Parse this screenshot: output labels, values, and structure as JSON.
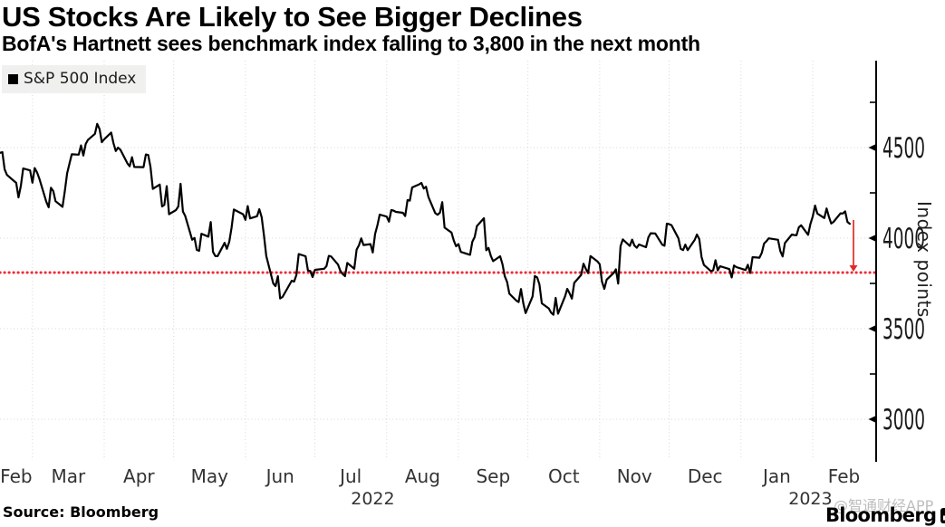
{
  "chart_data": {
    "type": "line",
    "title": "US Stocks Are Likely to See Bigger Declines",
    "subtitle": "BofA's Hartnett sees benchmark index falling to 3,800 in the next month",
    "legend_position": "top-left",
    "grid": true,
    "grid_color": "#d6d6d6",
    "total_days": 378,
    "series": [
      {
        "name": "S&P 500 Index",
        "color": "#000000",
        "points": [
          [
            0,
            4471
          ],
          [
            1,
            4475
          ],
          [
            2,
            4380
          ],
          [
            3,
            4349
          ],
          [
            7,
            4305
          ],
          [
            8,
            4225
          ],
          [
            9,
            4288
          ],
          [
            10,
            4385
          ],
          [
            13,
            4374
          ],
          [
            14,
            4306
          ],
          [
            15,
            4387
          ],
          [
            16,
            4363
          ],
          [
            17,
            4329
          ],
          [
            20,
            4201
          ],
          [
            21,
            4170
          ],
          [
            22,
            4278
          ],
          [
            23,
            4260
          ],
          [
            24,
            4204
          ],
          [
            27,
            4173
          ],
          [
            28,
            4262
          ],
          [
            29,
            4358
          ],
          [
            30,
            4412
          ],
          [
            31,
            4463
          ],
          [
            34,
            4461
          ],
          [
            35,
            4512
          ],
          [
            36,
            4456
          ],
          [
            37,
            4520
          ],
          [
            38,
            4543
          ],
          [
            41,
            4576
          ],
          [
            42,
            4631
          ],
          [
            43,
            4602
          ],
          [
            44,
            4530
          ],
          [
            45,
            4546
          ],
          [
            48,
            4583
          ],
          [
            49,
            4525
          ],
          [
            50,
            4481
          ],
          [
            51,
            4500
          ],
          [
            52,
            4488
          ],
          [
            55,
            4413
          ],
          [
            56,
            4397
          ],
          [
            57,
            4447
          ],
          [
            58,
            4393
          ],
          [
            62,
            4392
          ],
          [
            63,
            4462
          ],
          [
            64,
            4459
          ],
          [
            65,
            4393
          ],
          [
            66,
            4272
          ],
          [
            69,
            4296
          ],
          [
            70,
            4175
          ],
          [
            71,
            4184
          ],
          [
            72,
            4287
          ],
          [
            73,
            4132
          ],
          [
            76,
            4155
          ],
          [
            77,
            4175
          ],
          [
            78,
            4300
          ],
          [
            79,
            4147
          ],
          [
            80,
            4123
          ],
          [
            83,
            3991
          ],
          [
            84,
            4001
          ],
          [
            85,
            3935
          ],
          [
            86,
            3930
          ],
          [
            87,
            4024
          ],
          [
            90,
            4008
          ],
          [
            91,
            4089
          ],
          [
            92,
            3924
          ],
          [
            93,
            3901
          ],
          [
            94,
            3901
          ],
          [
            97,
            3974
          ],
          [
            98,
            3941
          ],
          [
            99,
            3979
          ],
          [
            100,
            4058
          ],
          [
            101,
            4158
          ],
          [
            105,
            4132
          ],
          [
            106,
            4101
          ],
          [
            107,
            4177
          ],
          [
            108,
            4109
          ],
          [
            111,
            4121
          ],
          [
            112,
            4160
          ],
          [
            113,
            4116
          ],
          [
            114,
            4017
          ],
          [
            115,
            3901
          ],
          [
            118,
            3750
          ],
          [
            119,
            3735
          ],
          [
            120,
            3790
          ],
          [
            121,
            3667
          ],
          [
            122,
            3675
          ],
          [
            126,
            3765
          ],
          [
            127,
            3760
          ],
          [
            128,
            3796
          ],
          [
            129,
            3912
          ],
          [
            132,
            3900
          ],
          [
            133,
            3821
          ],
          [
            134,
            3819
          ],
          [
            135,
            3785
          ],
          [
            136,
            3825
          ],
          [
            140,
            3831
          ],
          [
            141,
            3845
          ],
          [
            142,
            3902
          ],
          [
            143,
            3899
          ],
          [
            146,
            3854
          ],
          [
            147,
            3819
          ],
          [
            148,
            3802
          ],
          [
            149,
            3790
          ],
          [
            150,
            3863
          ],
          [
            153,
            3831
          ],
          [
            154,
            3937
          ],
          [
            155,
            3960
          ],
          [
            156,
            3999
          ],
          [
            157,
            3962
          ],
          [
            160,
            3967
          ],
          [
            161,
            3921
          ],
          [
            162,
            4023
          ],
          [
            163,
            4072
          ],
          [
            164,
            4130
          ],
          [
            167,
            4119
          ],
          [
            168,
            4091
          ],
          [
            169,
            4155
          ],
          [
            170,
            4152
          ],
          [
            171,
            4145
          ],
          [
            174,
            4140
          ],
          [
            175,
            4122
          ],
          [
            176,
            4210
          ],
          [
            177,
            4207
          ],
          [
            178,
            4280
          ],
          [
            181,
            4297
          ],
          [
            182,
            4305
          ],
          [
            183,
            4274
          ],
          [
            184,
            4284
          ],
          [
            185,
            4228
          ],
          [
            188,
            4138
          ],
          [
            189,
            4129
          ],
          [
            190,
            4141
          ],
          [
            191,
            4199
          ],
          [
            192,
            4058
          ],
          [
            195,
            4031
          ],
          [
            196,
            3986
          ],
          [
            197,
            3955
          ],
          [
            198,
            3967
          ],
          [
            199,
            3924
          ],
          [
            203,
            3908
          ],
          [
            204,
            3980
          ],
          [
            205,
            4006
          ],
          [
            206,
            4067
          ],
          [
            209,
            4110
          ],
          [
            210,
            3933
          ],
          [
            211,
            3946
          ],
          [
            212,
            3901
          ],
          [
            213,
            3873
          ],
          [
            216,
            3900
          ],
          [
            217,
            3856
          ],
          [
            218,
            3790
          ],
          [
            219,
            3758
          ],
          [
            220,
            3693
          ],
          [
            223,
            3655
          ],
          [
            224,
            3647
          ],
          [
            225,
            3719
          ],
          [
            226,
            3640
          ],
          [
            227,
            3586
          ],
          [
            230,
            3678
          ],
          [
            231,
            3791
          ],
          [
            232,
            3783
          ],
          [
            233,
            3744
          ],
          [
            234,
            3640
          ],
          [
            237,
            3612
          ],
          [
            238,
            3589
          ],
          [
            239,
            3577
          ],
          [
            240,
            3670
          ],
          [
            241,
            3583
          ],
          [
            244,
            3678
          ],
          [
            245,
            3720
          ],
          [
            246,
            3695
          ],
          [
            247,
            3666
          ],
          [
            248,
            3753
          ],
          [
            251,
            3797
          ],
          [
            252,
            3859
          ],
          [
            253,
            3830
          ],
          [
            254,
            3807
          ],
          [
            255,
            3901
          ],
          [
            258,
            3872
          ],
          [
            259,
            3856
          ],
          [
            260,
            3760
          ],
          [
            261,
            3720
          ],
          [
            262,
            3771
          ],
          [
            265,
            3807
          ],
          [
            266,
            3828
          ],
          [
            267,
            3749
          ],
          [
            268,
            3956
          ],
          [
            269,
            3993
          ],
          [
            272,
            3957
          ],
          [
            273,
            3992
          ],
          [
            274,
            3959
          ],
          [
            275,
            3947
          ],
          [
            276,
            3965
          ],
          [
            279,
            3950
          ],
          [
            280,
            4004
          ],
          [
            281,
            4027
          ],
          [
            283,
            4026
          ],
          [
            286,
            3964
          ],
          [
            287,
            3958
          ],
          [
            288,
            4080
          ],
          [
            289,
            4077
          ],
          [
            290,
            4072
          ],
          [
            293,
            3999
          ],
          [
            294,
            3941
          ],
          [
            295,
            3934
          ],
          [
            296,
            3964
          ],
          [
            297,
            3934
          ],
          [
            300,
            3990
          ],
          [
            301,
            4020
          ],
          [
            302,
            3995
          ],
          [
            303,
            3896
          ],
          [
            304,
            3852
          ],
          [
            307,
            3818
          ],
          [
            308,
            3822
          ],
          [
            309,
            3878
          ],
          [
            310,
            3822
          ],
          [
            311,
            3845
          ],
          [
            315,
            3829
          ],
          [
            316,
            3783
          ],
          [
            317,
            3849
          ],
          [
            318,
            3840
          ],
          [
            322,
            3824
          ],
          [
            323,
            3853
          ],
          [
            324,
            3808
          ],
          [
            325,
            3895
          ],
          [
            328,
            3892
          ],
          [
            329,
            3919
          ],
          [
            330,
            3970
          ],
          [
            331,
            3983
          ],
          [
            332,
            3999
          ],
          [
            336,
            3991
          ],
          [
            337,
            3929
          ],
          [
            338,
            3899
          ],
          [
            339,
            3973
          ],
          [
            342,
            4020
          ],
          [
            343,
            4017
          ],
          [
            344,
            4016
          ],
          [
            345,
            4060
          ],
          [
            346,
            4071
          ],
          [
            349,
            4018
          ],
          [
            350,
            4077
          ],
          [
            351,
            4119
          ],
          [
            352,
            4180
          ],
          [
            353,
            4136
          ],
          [
            356,
            4111
          ],
          [
            357,
            4164
          ],
          [
            358,
            4118
          ],
          [
            359,
            4081
          ],
          [
            360,
            4090
          ],
          [
            363,
            4137
          ],
          [
            364,
            4136
          ],
          [
            365,
            4148
          ],
          [
            366,
            4090
          ],
          [
            367,
            4079
          ]
        ]
      }
    ],
    "x_axis": {
      "months": [
        {
          "label": "Feb",
          "mid_day": 7
        },
        {
          "label": "Mar",
          "mid_day": 29.5
        },
        {
          "label": "Apr",
          "mid_day": 60
        },
        {
          "label": "May",
          "mid_day": 90.5
        },
        {
          "label": "Jun",
          "mid_day": 121
        },
        {
          "label": "Jul",
          "mid_day": 151.5
        },
        {
          "label": "Aug",
          "mid_day": 182.5
        },
        {
          "label": "Sep",
          "mid_day": 213
        },
        {
          "label": "Oct",
          "mid_day": 243.5
        },
        {
          "label": "Nov",
          "mid_day": 274
        },
        {
          "label": "Dec",
          "mid_day": 304.5
        },
        {
          "label": "Jan",
          "mid_day": 335.5
        },
        {
          "label": "Feb",
          "mid_day": 364.5
        }
      ],
      "month_tick_days": [
        14,
        45,
        75,
        106,
        136,
        167,
        198,
        228,
        259,
        289,
        320,
        351
      ],
      "years": [
        {
          "label": "2022",
          "mid_day": 161
        },
        {
          "label": "2023",
          "mid_day": 350
        }
      ]
    },
    "y_axis": {
      "label": "Index points",
      "ticks": [
        4500,
        4000,
        3500,
        3000
      ],
      "minor_ticks": [
        4750,
        4250,
        3750,
        3250
      ],
      "range": [
        2775,
        4980
      ],
      "side": "right"
    },
    "annotations": {
      "target_line": {
        "value": 3800,
        "color": "#ee2b37",
        "style": "dotted"
      },
      "arrow": {
        "day": 368.6,
        "from_value": 4100,
        "to_value": 3850,
        "color": "#e22a26",
        "direction": "down"
      }
    }
  },
  "legend": {
    "swatch_color": "#000000"
  },
  "source": {
    "label": "Source: Bloomberg"
  },
  "branding": {
    "wordmark": "Bloomberg"
  },
  "watermark": {
    "text": "@智通财经APP"
  }
}
